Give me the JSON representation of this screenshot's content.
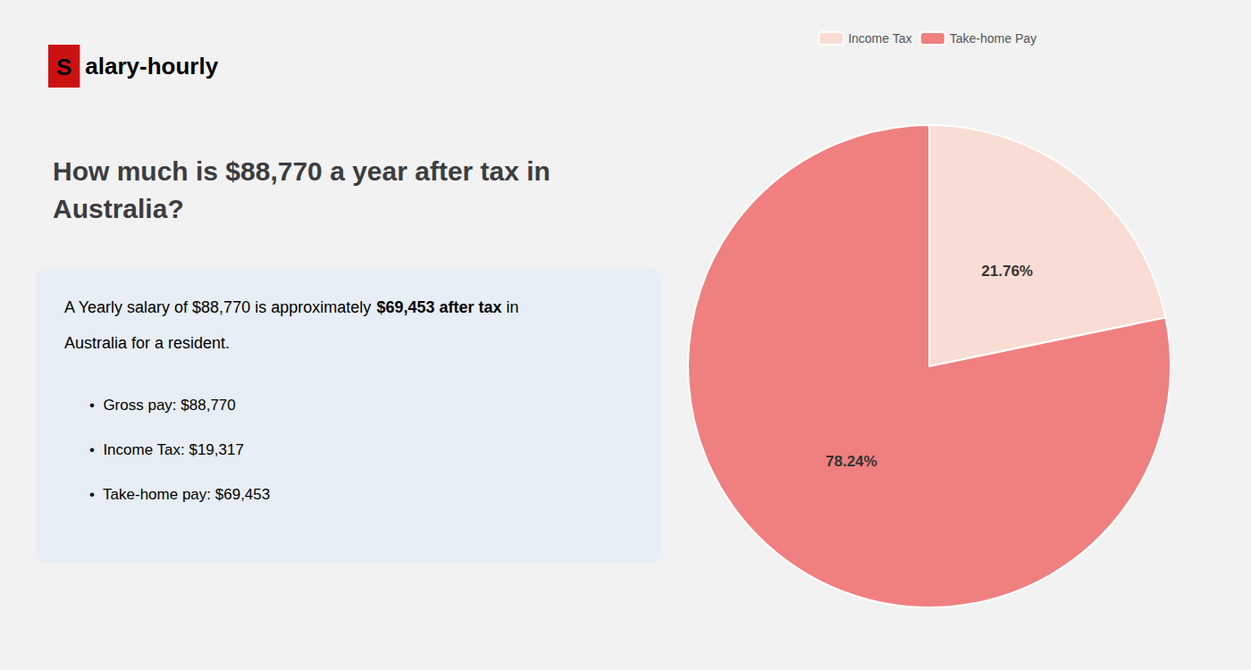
{
  "chart_data": {
    "type": "pie",
    "title": "How much is $88,770 a year after tax in\nAustralia?",
    "categories": [
      "Income Tax",
      "Take-home Pay"
    ],
    "values": [
      21.76,
      78.24
    ],
    "value_labels": [
      "21.76%",
      "78.24%"
    ],
    "colors": [
      "#f9ddd4",
      "#f08080"
    ],
    "data_labels": true,
    "legend": "top",
    "annotations": [
      [
        {
          "text": "S",
          "color": "#cc1111"
        },
        {
          "text": "alary-hourly"
        }
      ],
      [
        {
          "text": "A Yearly salary of $88,770 is approximately "
        },
        {
          "text": "$69,453 after tax",
          "color": "#cc1111"
        },
        {
          "text": " in"
        }
      ],
      [
        {
          "text": "Australia for a resident."
        }
      ],
      [
        {
          "text": "•  Gross pay: $88,770"
        }
      ],
      [
        {
          "text": "•  Income Tax: $19,317"
        }
      ],
      [
        {
          "text": "•  Take-home pay: $69,453"
        }
      ]
    ]
  }
}
